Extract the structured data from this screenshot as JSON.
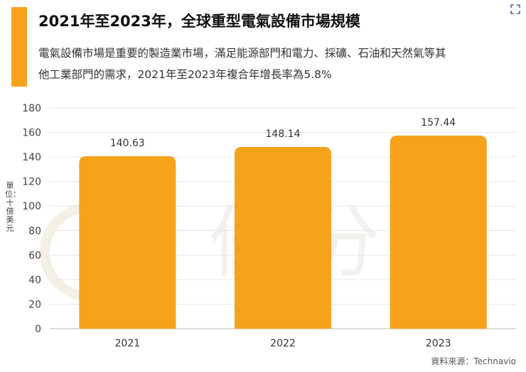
{
  "header": {
    "title": "2021年至2023年，全球重型電氣設備市場規模",
    "subtitle": "電氣設備市場是重要的製造業市場，滿足能源部門和電力、採礦、石油和天然氣等其他工業部門的需求，2021年至2023年複合年增長率為5.8%"
  },
  "source": "資料來源：Technavio",
  "watermark_text": "優分析",
  "colors": {
    "accent": "#f7a21b",
    "bar": "#f7a21b"
  },
  "chart_data": {
    "type": "bar",
    "categories": [
      "2021",
      "2022",
      "2023"
    ],
    "values": [
      140.63,
      148.14,
      157.44
    ],
    "value_labels": [
      "140.63",
      "148.14",
      "157.44"
    ],
    "title": "",
    "xlabel": "",
    "ylabel": "單位：十億美元",
    "ylim": [
      0,
      180
    ],
    "yticks": [
      0,
      20,
      40,
      60,
      80,
      100,
      120,
      140,
      160,
      180
    ],
    "grid": true,
    "legend": "none"
  }
}
